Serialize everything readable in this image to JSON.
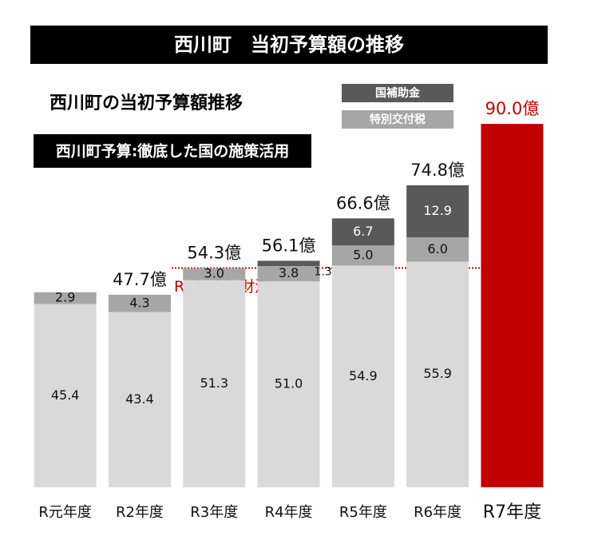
{
  "chart_data": {
    "type": "stacked_bar",
    "title": "西川町　当初予算額の推移",
    "subtitle": "西川町の当初予算額推移",
    "banner": "西川町予算:徹底した国の施策活用",
    "categories": [
      "R元年度",
      "R2年度",
      "R3年度",
      "R4年度",
      "R5年度",
      "R6年度",
      "R7年度"
    ],
    "series": [
      {
        "color": "#d9d9d9",
        "values": [
          45.4,
          43.4,
          51.3,
          51.0,
          54.9,
          55.9,
          null
        ],
        "value_labels": [
          "45.4",
          "43.4",
          "51.3",
          "51.0",
          "54.9",
          "55.9",
          null
        ]
      },
      {
        "name": "特別交付税",
        "color": "#a6a6a6",
        "values": [
          2.9,
          4.3,
          3.0,
          3.8,
          5.0,
          6.0,
          null
        ],
        "value_labels": [
          "2.9",
          "4.3",
          "3.0",
          "3.8",
          "5.0",
          "6.0",
          null
        ]
      },
      {
        "name": "国補助金",
        "color": "#595959",
        "values": [
          null,
          null,
          null,
          1.3,
          6.7,
          12.9,
          null
        ],
        "value_labels": [
          null,
          null,
          null,
          "1.3",
          "6.7",
          "12.9",
          null
        ]
      },
      {
        "color": "#c00000",
        "values": [
          null,
          null,
          null,
          null,
          null,
          null,
          90.0
        ]
      }
    ],
    "totals": {
      "values": [
        null,
        47.7,
        54.3,
        56.1,
        66.6,
        74.8,
        90.0
      ],
      "value_labels": [
        null,
        "47.7億",
        "54.3億",
        "56.1億",
        "66.6億",
        "74.8億",
        "90.0億"
      ]
    },
    "reference_line": {
      "value": 54.3,
      "label": "R3年度町財源",
      "color": "#c00000"
    },
    "ylim": [
      0,
      92
    ]
  }
}
